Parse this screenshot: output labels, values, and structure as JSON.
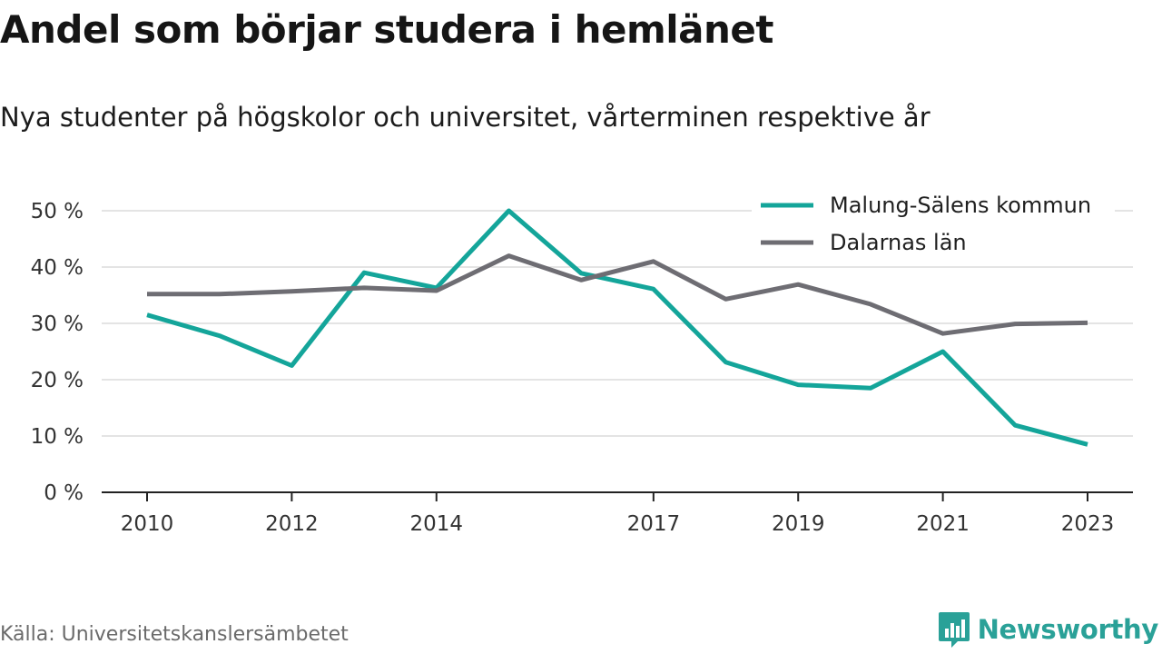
{
  "header": {
    "title": "Andel som börjar studera i hemlänet",
    "subtitle": "Nya studenter på högskolor och universitet, vårterminen respektive år"
  },
  "footer": {
    "source": "Källa: Universitetskanslersämbetet",
    "brand": "Newsworthy",
    "brand_icon": "bar-chart-logo-icon"
  },
  "colors": {
    "malung": "#14a59a",
    "dalarna": "#6e6d73",
    "grid": "#dcdcdc",
    "axis": "#222222",
    "brand": "#2aa198"
  },
  "chart_data": {
    "type": "line",
    "x": [
      2010,
      2011,
      2012,
      2013,
      2014,
      2015,
      2016,
      2017,
      2018,
      2019,
      2020,
      2021,
      2022,
      2023
    ],
    "xticks": [
      "2010",
      "2012",
      "2014",
      "2017",
      "2019",
      "2021",
      "2023"
    ],
    "xtick_values": [
      2010,
      2012,
      2014,
      2017,
      2019,
      2021,
      2023
    ],
    "ylim": [
      0,
      50
    ],
    "yticks": [
      0,
      10,
      20,
      30,
      40,
      50
    ],
    "ytick_labels": [
      "0 %",
      "10 %",
      "20 %",
      "30 %",
      "40 %",
      "50 %"
    ],
    "grid": true,
    "legend_position": "top-right",
    "series": [
      {
        "name": "Malung-Sälens kommun",
        "color": "#14a59a",
        "values": [
          31.5,
          27.8,
          22.5,
          39.0,
          36.3,
          50.0,
          38.9,
          36.1,
          23.1,
          19.1,
          18.5,
          25.0,
          11.9,
          8.5
        ]
      },
      {
        "name": "Dalarnas län",
        "color": "#6e6d73",
        "values": [
          35.2,
          35.2,
          35.7,
          36.3,
          35.8,
          42.0,
          37.7,
          41.0,
          34.3,
          36.9,
          33.4,
          28.2,
          29.9,
          30.1
        ]
      }
    ]
  }
}
